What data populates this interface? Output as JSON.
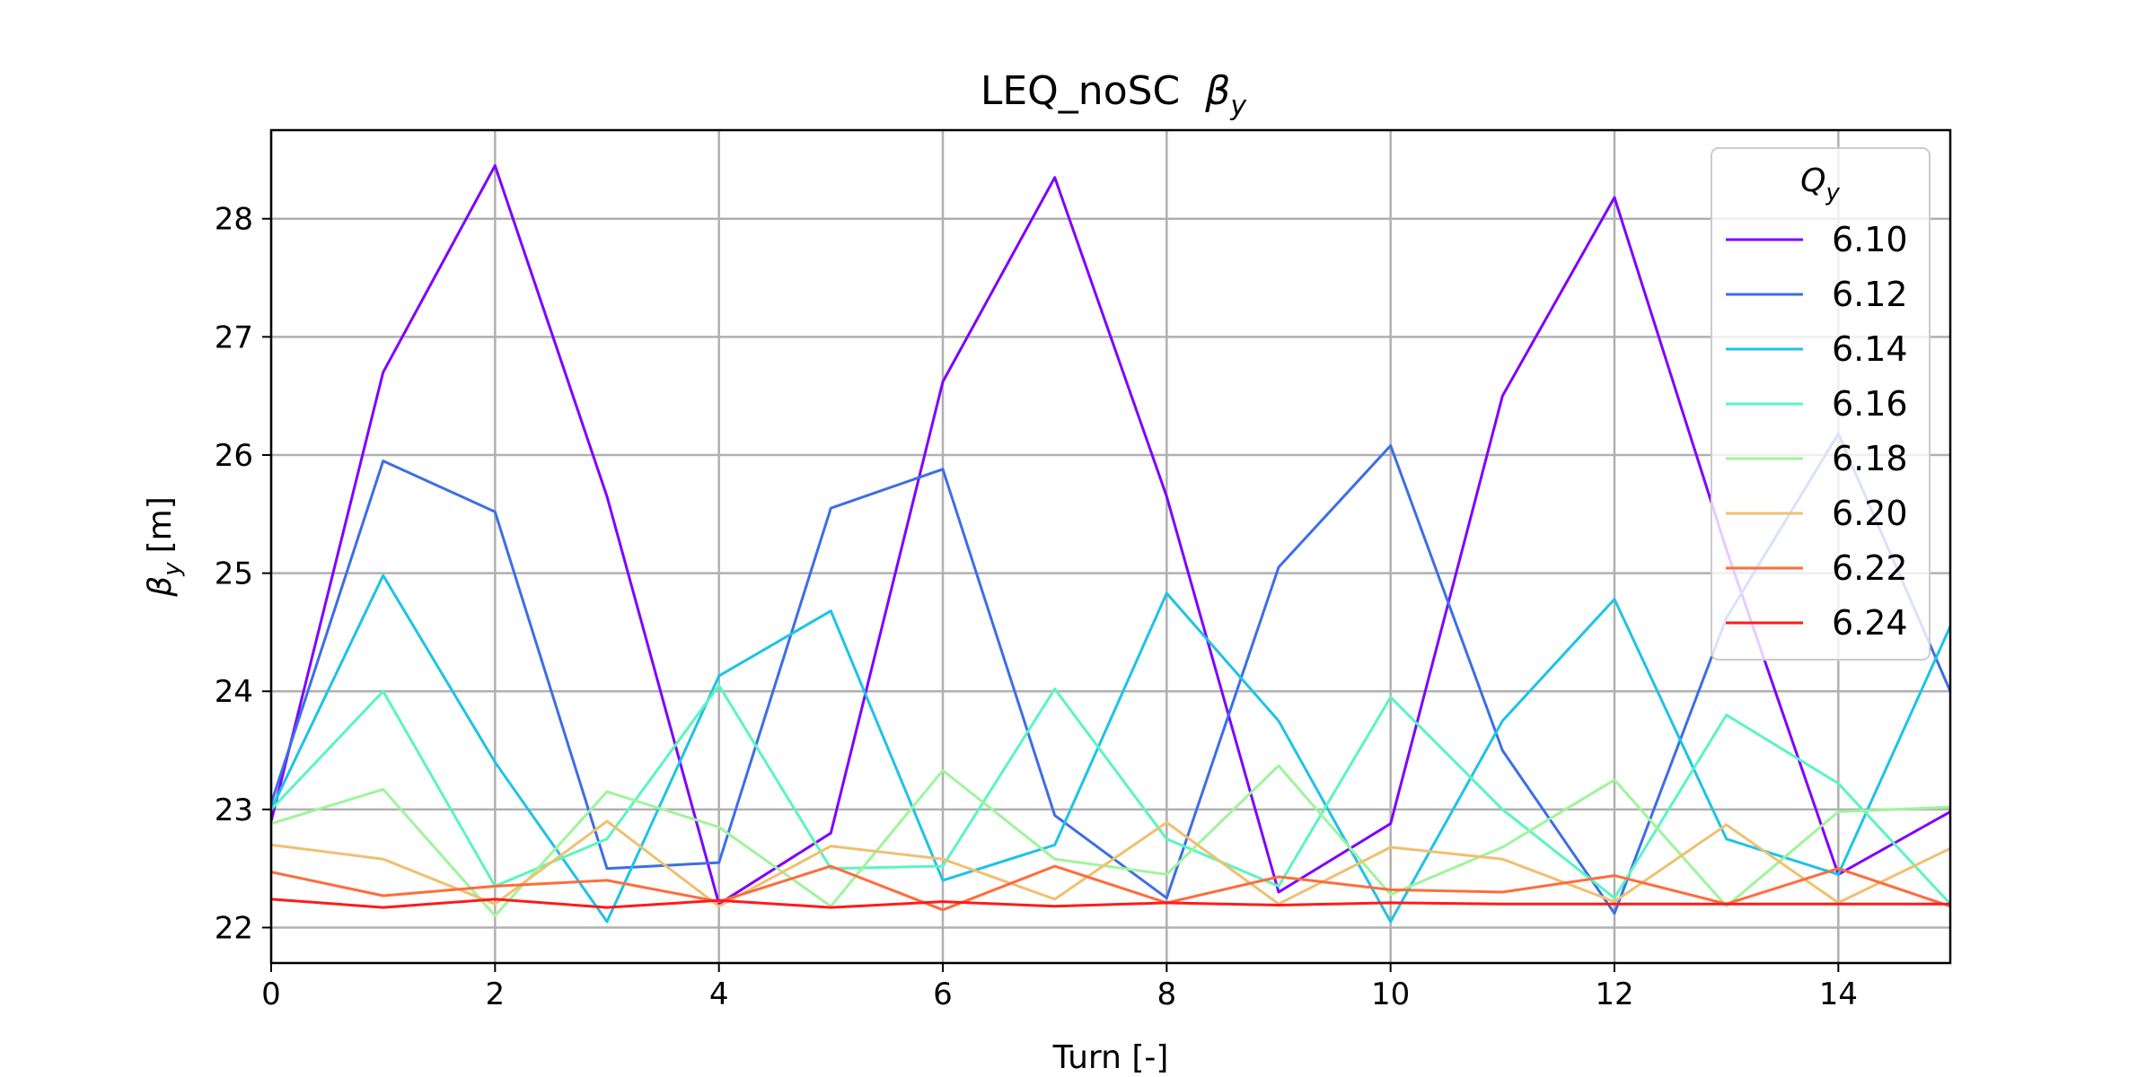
{
  "chart_data": {
    "type": "line",
    "title": "LEQ_noSC",
    "title_symbol": "β",
    "title_symbol_sub": "y",
    "xlabel": "Turn [-]",
    "ylabel": "β",
    "ylabel_sub": "y",
    "ylabel_unit": "[m]",
    "xlim": [
      0,
      15
    ],
    "ylim": [
      21.7,
      28.75
    ],
    "xticks": [
      0,
      2,
      4,
      6,
      8,
      10,
      12,
      14
    ],
    "yticks": [
      22,
      23,
      24,
      25,
      26,
      27,
      28
    ],
    "grid": true,
    "legend": {
      "title": "Q",
      "title_sub": "y",
      "placement": "top-right"
    },
    "x": [
      0,
      1,
      2,
      3,
      4,
      5,
      6,
      7,
      8,
      9,
      10,
      11,
      12,
      13,
      14,
      15
    ],
    "series": [
      {
        "name": "6.10",
        "color": "#7f00ff",
        "values": [
          22.9,
          26.7,
          28.45,
          25.65,
          22.2,
          22.8,
          26.62,
          28.35,
          25.65,
          22.3,
          22.88,
          26.5,
          28.18,
          25.2,
          22.45,
          22.98
        ]
      },
      {
        "name": "6.12",
        "color": "#3c6ee8",
        "values": [
          23.05,
          25.95,
          25.52,
          22.5,
          22.55,
          25.55,
          25.88,
          22.95,
          22.25,
          25.05,
          26.08,
          23.5,
          22.12,
          24.62,
          26.18,
          24.0
        ]
      },
      {
        "name": "6.14",
        "color": "#1ec3e6",
        "values": [
          23.0,
          24.98,
          23.4,
          22.05,
          24.13,
          24.68,
          22.4,
          22.7,
          24.83,
          23.75,
          22.05,
          23.75,
          24.78,
          22.75,
          22.45,
          24.55
        ]
      },
      {
        "name": "6.16",
        "color": "#5af5c0",
        "values": [
          23.0,
          24.0,
          22.35,
          22.75,
          24.05,
          22.5,
          22.52,
          24.02,
          22.75,
          22.35,
          23.95,
          23.0,
          22.25,
          23.8,
          23.22,
          22.2
        ]
      },
      {
        "name": "6.18",
        "color": "#9ef59a",
        "values": [
          22.88,
          23.17,
          22.1,
          23.15,
          22.85,
          22.18,
          23.33,
          22.58,
          22.45,
          23.37,
          22.28,
          22.68,
          23.25,
          22.18,
          22.98,
          23.02
        ]
      },
      {
        "name": "6.20",
        "color": "#f0c070",
        "values": [
          22.7,
          22.58,
          22.2,
          22.9,
          22.18,
          22.69,
          22.58,
          22.24,
          22.89,
          22.2,
          22.68,
          22.58,
          22.22,
          22.87,
          22.21,
          22.67
        ]
      },
      {
        "name": "6.22",
        "color": "#ff6c3c",
        "values": [
          22.47,
          22.27,
          22.35,
          22.4,
          22.22,
          22.52,
          22.15,
          22.52,
          22.21,
          22.43,
          22.32,
          22.3,
          22.44,
          22.2,
          22.5,
          22.18
        ]
      },
      {
        "name": "6.24",
        "color": "#ff1a1a",
        "values": [
          22.24,
          22.17,
          22.24,
          22.17,
          22.23,
          22.17,
          22.22,
          22.18,
          22.21,
          22.19,
          22.21,
          22.2,
          22.2,
          22.2,
          22.2,
          22.2
        ]
      }
    ]
  }
}
